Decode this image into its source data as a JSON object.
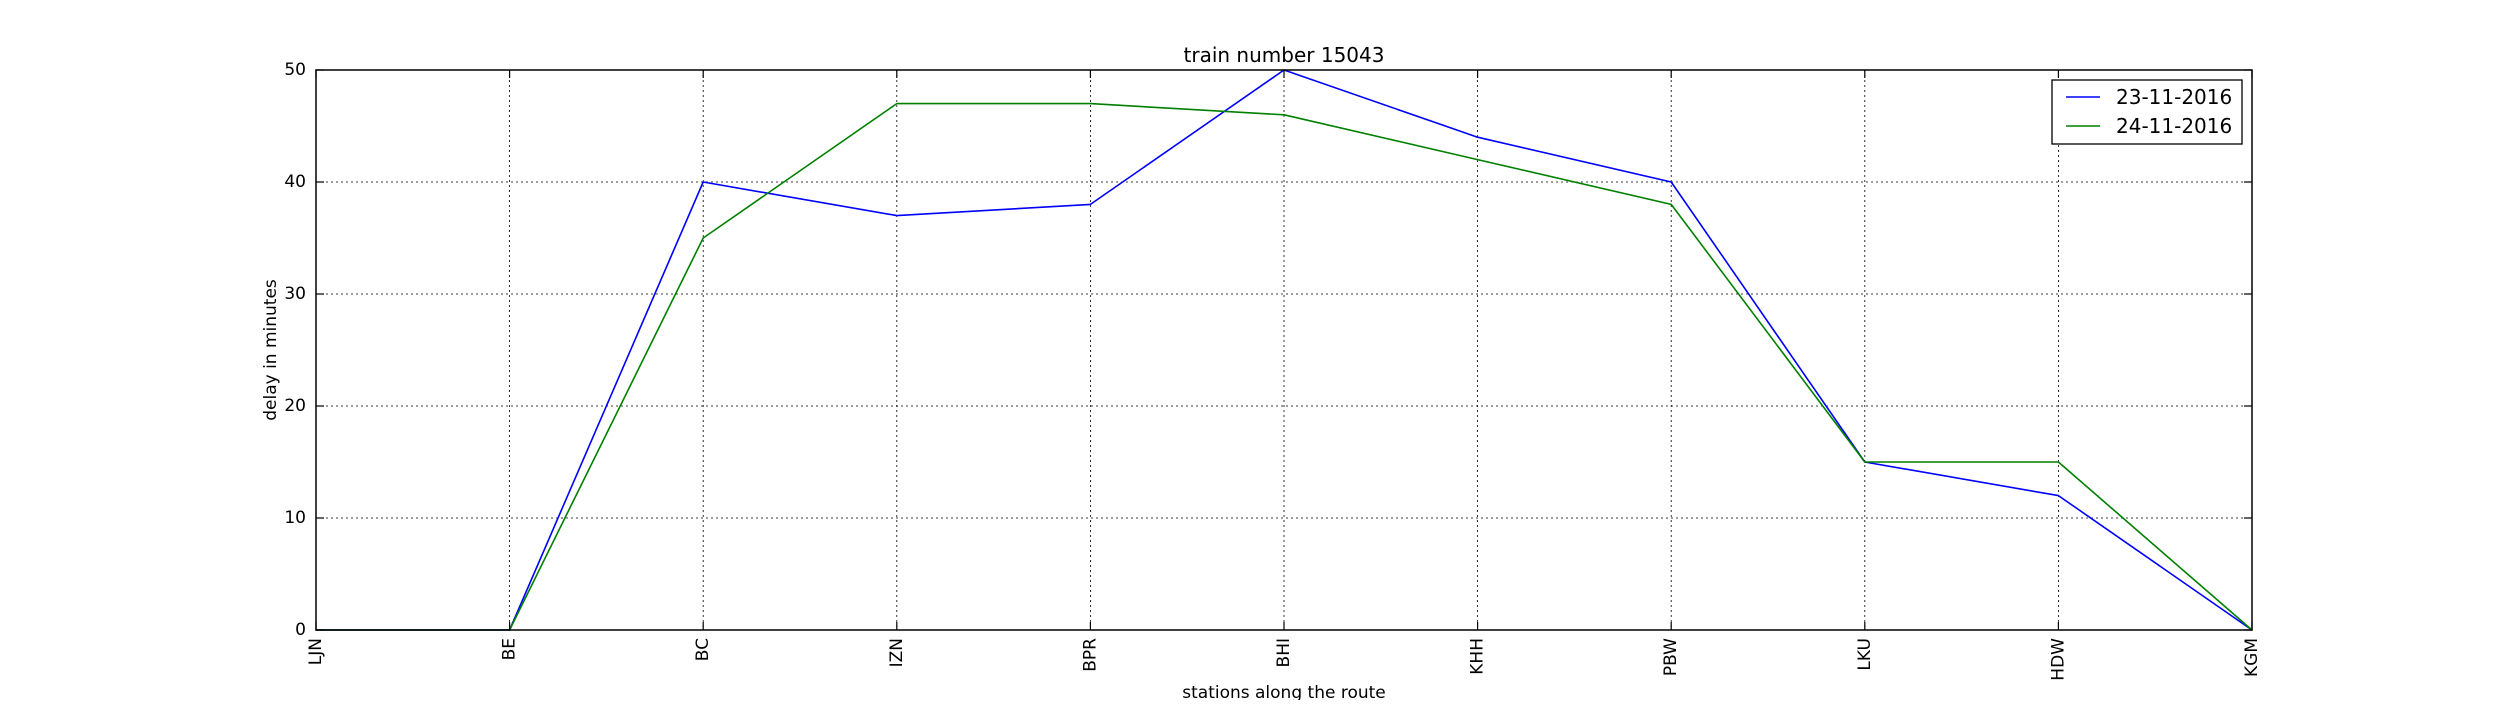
{
  "chart_data": {
    "type": "line",
    "title": "train number 15043",
    "xlabel": "stations along the route",
    "ylabel": "delay in minutes",
    "categories": [
      "LJN",
      "BE",
      "BC",
      "IZN",
      "BPR",
      "BHI",
      "KHH",
      "PBW",
      "LKU",
      "HDW",
      "KGM"
    ],
    "y_ticks": [
      0,
      10,
      20,
      30,
      40,
      50
    ],
    "ylim": [
      0,
      50
    ],
    "grid": true,
    "legend_position": "top-right",
    "series": [
      {
        "name": "23-11-2016",
        "color": "#0000ff",
        "values": [
          0,
          0,
          40,
          37,
          38,
          50,
          44,
          40,
          15,
          12,
          0
        ]
      },
      {
        "name": "24-11-2016",
        "color": "#008000",
        "values": [
          0,
          0,
          35,
          47,
          47,
          46,
          42,
          38,
          15,
          15,
          0
        ]
      }
    ]
  }
}
